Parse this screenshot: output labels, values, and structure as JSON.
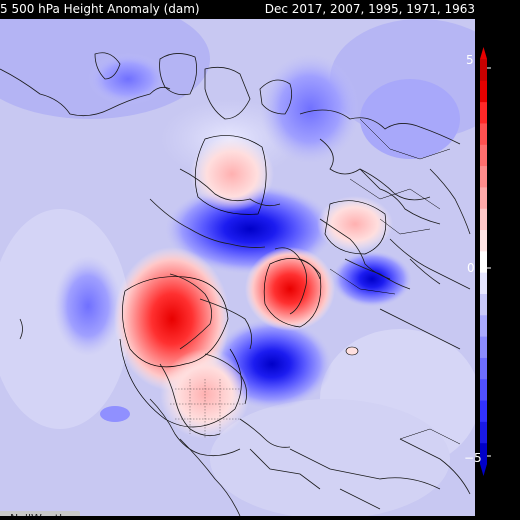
{
  "header": {
    "title": "5 500 hPa Height Anomaly (dam)",
    "years": "Dec 2017, 2007, 1995, 1971, 1963"
  },
  "colorbar": {
    "max_label": "5",
    "zero_label": "0",
    "min_label": "−5",
    "colors": [
      "#0000c8",
      "#1a1ae6",
      "#3232ff",
      "#5050ff",
      "#6e6eff",
      "#8c8cff",
      "#aaaaff",
      "#c8c8fa",
      "#e6e6ff",
      "#ffffff",
      "#ffe6e6",
      "#ffc8c8",
      "#ffaaaa",
      "#ff8c8c",
      "#ff6e6e",
      "#ff5050",
      "#ff2828",
      "#e60000",
      "#c80000"
    ]
  },
  "watermark": "nNollWeather",
  "colors": {
    "background": "#cfcff0",
    "positive": "#ff2020",
    "negative": "#1010e0"
  }
}
